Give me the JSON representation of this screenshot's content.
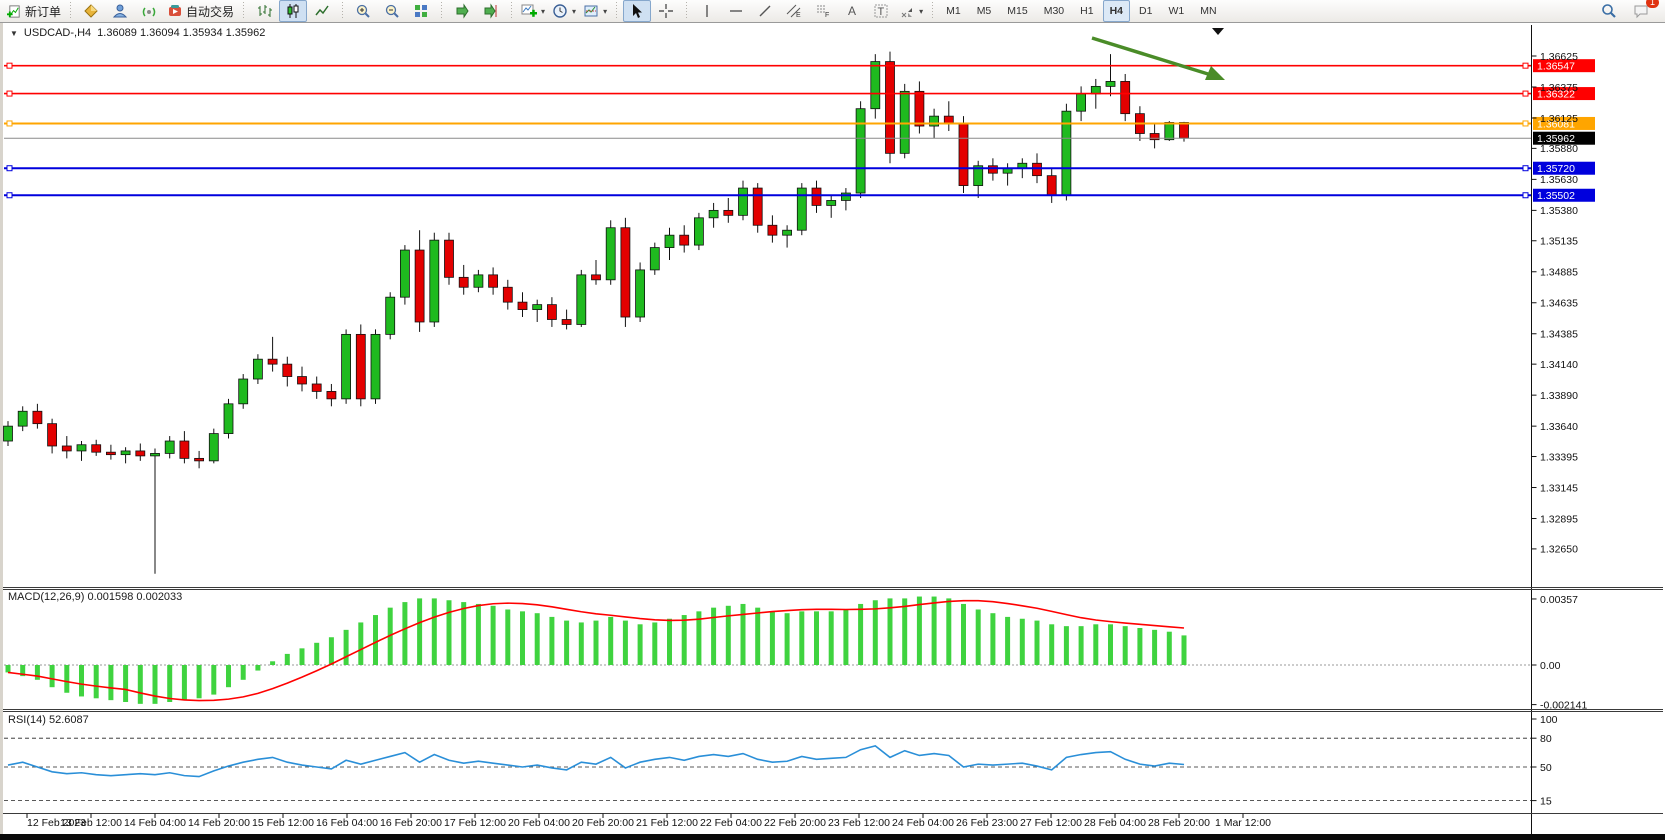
{
  "toolbar": {
    "new_order_label": "新订单",
    "autotrade_label": "自动交易",
    "timeframes": [
      "M1",
      "M5",
      "M15",
      "M30",
      "H1",
      "H4",
      "D1",
      "W1",
      "MN"
    ],
    "active_timeframe": "H4",
    "notification_count": "1"
  },
  "chart": {
    "symbol_period": "USDCAD-,H4",
    "ohlc_display": "1.36089 1.36094 1.35934 1.35962",
    "macd_display": "MACD(12,26,9) 0.001598 0.002033",
    "rsi_display": "RSI(14) 52.6087"
  },
  "colors": {
    "up": "#1fba1f",
    "down": "#e30000",
    "wick": "#111111",
    "red_line": "#ff0000",
    "orange_line": "#ffa500",
    "blue_line": "#0000dd",
    "current_line": "#8a8a8a",
    "current_label_bg": "#000000",
    "macd_hist": "#3fd33f",
    "macd_signal": "#ff0000",
    "rsi_line": "#2a8fd8",
    "arrow": "#4a8c28"
  },
  "chart_data": {
    "type": "candlestick",
    "symbol": "USDCAD",
    "timeframe": "H4",
    "current_ohlc": {
      "open": 1.36089,
      "high": 1.36094,
      "low": 1.35934,
      "close": 1.35962
    },
    "price_axis_ticks": [
      "1.36625",
      "1.36375",
      "1.36125",
      "1.35880",
      "1.35630",
      "1.35380",
      "1.35135",
      "1.34885",
      "1.34635",
      "1.34385",
      "1.34140",
      "1.33890",
      "1.33640",
      "1.33395",
      "1.33145",
      "1.32895",
      "1.32650"
    ],
    "hlines": [
      {
        "price": 1.36547,
        "label": "1.36547",
        "color": "#ff0000",
        "w": 1.6
      },
      {
        "price": 1.36322,
        "label": "1.36322",
        "color": "#ff0000",
        "w": 1.6
      },
      {
        "price": 1.36081,
        "label": "1.36081",
        "color": "#ffa500",
        "w": 2
      },
      {
        "price": 1.3572,
        "label": "1.35720",
        "color": "#0000dd",
        "w": 2
      },
      {
        "price": 1.35502,
        "label": "1.35502",
        "color": "#0000dd",
        "w": 2
      }
    ],
    "current_price": {
      "price": 1.35962,
      "label": "1.35962"
    },
    "candles": [
      [
        1.3352,
        1.3368,
        1.3348,
        1.3364
      ],
      [
        1.3364,
        1.338,
        1.336,
        1.3376
      ],
      [
        1.3376,
        1.3382,
        1.3362,
        1.3366
      ],
      [
        1.3366,
        1.337,
        1.3342,
        1.3348
      ],
      [
        1.3348,
        1.3356,
        1.3338,
        1.3344
      ],
      [
        1.3344,
        1.3352,
        1.3336,
        1.3349
      ],
      [
        1.3349,
        1.3353,
        1.334,
        1.3343
      ],
      [
        1.3343,
        1.3349,
        1.3337,
        1.3341
      ],
      [
        1.3341,
        1.3347,
        1.3334,
        1.3344
      ],
      [
        1.3344,
        1.335,
        1.3336,
        1.334
      ],
      [
        1.334,
        1.3346,
        1.3245,
        1.3342
      ],
      [
        1.3342,
        1.3356,
        1.3338,
        1.3352
      ],
      [
        1.3352,
        1.336,
        1.3334,
        1.3338
      ],
      [
        1.3338,
        1.3344,
        1.333,
        1.3336
      ],
      [
        1.3336,
        1.3362,
        1.3334,
        1.3358
      ],
      [
        1.3358,
        1.3386,
        1.3354,
        1.3382
      ],
      [
        1.3382,
        1.3406,
        1.3378,
        1.3402
      ],
      [
        1.3402,
        1.3422,
        1.3398,
        1.3418
      ],
      [
        1.3418,
        1.3436,
        1.3408,
        1.3414
      ],
      [
        1.3414,
        1.342,
        1.3396,
        1.3404
      ],
      [
        1.3404,
        1.3412,
        1.3392,
        1.3398
      ],
      [
        1.3398,
        1.3404,
        1.3386,
        1.3392
      ],
      [
        1.3392,
        1.3398,
        1.338,
        1.3386
      ],
      [
        1.3386,
        1.3442,
        1.3382,
        1.3438
      ],
      [
        1.3438,
        1.3446,
        1.338,
        1.3386
      ],
      [
        1.3386,
        1.3442,
        1.3382,
        1.3438
      ],
      [
        1.3438,
        1.3472,
        1.3434,
        1.3468
      ],
      [
        1.3468,
        1.351,
        1.3462,
        1.3506
      ],
      [
        1.3506,
        1.3522,
        1.344,
        1.3448
      ],
      [
        1.3448,
        1.352,
        1.3444,
        1.3514
      ],
      [
        1.3514,
        1.352,
        1.3478,
        1.3484
      ],
      [
        1.3484,
        1.3494,
        1.347,
        1.3476
      ],
      [
        1.3476,
        1.349,
        1.3472,
        1.3486
      ],
      [
        1.3486,
        1.3492,
        1.347,
        1.3476
      ],
      [
        1.3476,
        1.3482,
        1.3458,
        1.3464
      ],
      [
        1.3464,
        1.3472,
        1.3452,
        1.3458
      ],
      [
        1.3458,
        1.3466,
        1.3448,
        1.3462
      ],
      [
        1.3462,
        1.3468,
        1.3444,
        1.345
      ],
      [
        1.345,
        1.3458,
        1.3442,
        1.3446
      ],
      [
        1.3446,
        1.349,
        1.3444,
        1.3486
      ],
      [
        1.3486,
        1.3498,
        1.3478,
        1.3482
      ],
      [
        1.3482,
        1.353,
        1.3478,
        1.3524
      ],
      [
        1.3524,
        1.3532,
        1.3444,
        1.3452
      ],
      [
        1.3452,
        1.3496,
        1.3448,
        1.349
      ],
      [
        1.349,
        1.3512,
        1.3486,
        1.3508
      ],
      [
        1.3508,
        1.3524,
        1.3498,
        1.3518
      ],
      [
        1.3518,
        1.3526,
        1.3504,
        1.351
      ],
      [
        1.351,
        1.3536,
        1.3506,
        1.3532
      ],
      [
        1.3532,
        1.3544,
        1.3524,
        1.3538
      ],
      [
        1.3538,
        1.3548,
        1.3528,
        1.3534
      ],
      [
        1.3534,
        1.3562,
        1.353,
        1.3556
      ],
      [
        1.3556,
        1.356,
        1.352,
        1.3526
      ],
      [
        1.3526,
        1.3534,
        1.3512,
        1.3518
      ],
      [
        1.3518,
        1.3526,
        1.3508,
        1.3522
      ],
      [
        1.3522,
        1.356,
        1.3518,
        1.3556
      ],
      [
        1.3556,
        1.3562,
        1.3536,
        1.3542
      ],
      [
        1.3542,
        1.355,
        1.3532,
        1.3546
      ],
      [
        1.3546,
        1.3556,
        1.3538,
        1.3552
      ],
      [
        1.3552,
        1.3626,
        1.3548,
        1.362
      ],
      [
        1.362,
        1.3664,
        1.3612,
        1.3658
      ],
      [
        1.3658,
        1.3666,
        1.3576,
        1.3584
      ],
      [
        1.3584,
        1.364,
        1.358,
        1.3634
      ],
      [
        1.3634,
        1.3642,
        1.36,
        1.3606
      ],
      [
        1.3606,
        1.362,
        1.3596,
        1.3614
      ],
      [
        1.3614,
        1.3626,
        1.3602,
        1.3608
      ],
      [
        1.3608,
        1.3614,
        1.3552,
        1.3558
      ],
      [
        1.3558,
        1.3578,
        1.3548,
        1.3574
      ],
      [
        1.3574,
        1.358,
        1.3562,
        1.3568
      ],
      [
        1.3568,
        1.3576,
        1.3558,
        1.3572
      ],
      [
        1.3572,
        1.358,
        1.3564,
        1.3576
      ],
      [
        1.3576,
        1.3584,
        1.356,
        1.3566
      ],
      [
        1.3566,
        1.3572,
        1.3544,
        1.355
      ],
      [
        1.355,
        1.3624,
        1.3546,
        1.3618
      ],
      [
        1.3618,
        1.3638,
        1.361,
        1.3632
      ],
      [
        1.3632,
        1.3644,
        1.362,
        1.3638
      ],
      [
        1.3638,
        1.3664,
        1.363,
        1.3642
      ],
      [
        1.3642,
        1.3648,
        1.361,
        1.3616
      ],
      [
        1.3616,
        1.3622,
        1.3594,
        1.36
      ],
      [
        1.36,
        1.3608,
        1.3588,
        1.3595
      ],
      [
        1.3595,
        1.361,
        1.3594,
        1.36089
      ],
      [
        1.36089,
        1.36094,
        1.35934,
        1.35962
      ]
    ],
    "macd": {
      "label": "MACD(12,26,9)",
      "values_display": "0.001598 0.002033",
      "scale": [
        {
          "v": 0.00357,
          "label": "0.00357"
        },
        {
          "v": 0,
          "label": "0.00"
        },
        {
          "v": -0.002141,
          "label": "-0.002141"
        }
      ],
      "histogram": [
        -0.0004,
        -0.0006,
        -0.0008,
        -0.0012,
        -0.0015,
        -0.0017,
        -0.0018,
        -0.0019,
        -0.002,
        -0.0021,
        -0.0021,
        -0.002,
        -0.0019,
        -0.0018,
        -0.0016,
        -0.0012,
        -0.0008,
        -0.0003,
        0.0002,
        0.0006,
        0.0009,
        0.0012,
        0.0015,
        0.0019,
        0.0023,
        0.0027,
        0.0031,
        0.0034,
        0.0036,
        0.0036,
        0.0035,
        0.0034,
        0.0033,
        0.0032,
        0.003,
        0.0029,
        0.0028,
        0.0026,
        0.0024,
        0.0023,
        0.0024,
        0.0026,
        0.0024,
        0.0022,
        0.0023,
        0.0025,
        0.0027,
        0.0029,
        0.0031,
        0.0032,
        0.0033,
        0.0031,
        0.0029,
        0.0028,
        0.0029,
        0.0029,
        0.0029,
        0.003,
        0.0033,
        0.0035,
        0.0036,
        0.0036,
        0.0037,
        0.0037,
        0.0036,
        0.0033,
        0.003,
        0.0028,
        0.0026,
        0.0025,
        0.0024,
        0.0022,
        0.0021,
        0.0021,
        0.0022,
        0.0022,
        0.0021,
        0.002,
        0.0019,
        0.0018,
        0.0016
      ]
    },
    "rsi": {
      "label": "RSI(14)",
      "value_display": "52.6087",
      "scale": [
        {
          "v": 100,
          "label": "100"
        },
        {
          "v": 80,
          "label": "80"
        },
        {
          "v": 50,
          "label": "50"
        },
        {
          "v": 15,
          "label": "15"
        }
      ],
      "levels": [
        80,
        50,
        15
      ],
      "values": [
        52,
        55,
        50,
        45,
        43,
        44,
        42,
        41,
        42,
        43,
        42,
        44,
        41,
        40,
        46,
        51,
        55,
        58,
        60,
        55,
        52,
        50,
        48,
        57,
        53,
        57,
        61,
        65,
        55,
        63,
        57,
        54,
        56,
        54,
        52,
        50,
        52,
        49,
        47,
        55,
        53,
        60,
        49,
        55,
        58,
        60,
        57,
        61,
        63,
        61,
        64,
        58,
        55,
        56,
        61,
        58,
        59,
        60,
        68,
        72,
        60,
        67,
        62,
        64,
        62,
        50,
        53,
        52,
        53,
        54,
        51,
        47,
        60,
        63,
        65,
        66,
        58,
        53,
        51,
        54,
        52.6
      ]
    },
    "time_labels": [
      "12 Feb 2023",
      "13 Feb 12:00",
      "14 Feb 04:00",
      "14 Feb 20:00",
      "15 Feb 12:00",
      "16 Feb 04:00",
      "16 Feb 20:00",
      "17 Feb 12:00",
      "20 Feb 04:00",
      "20 Feb 20:00",
      "21 Feb 12:00",
      "22 Feb 04:00",
      "22 Feb 20:00",
      "23 Feb 12:00",
      "24 Feb 04:00",
      "26 Feb 23:00",
      "27 Feb 12:00",
      "28 Feb 04:00",
      "28 Feb 20:00",
      "1 Mar 12:00"
    ]
  }
}
